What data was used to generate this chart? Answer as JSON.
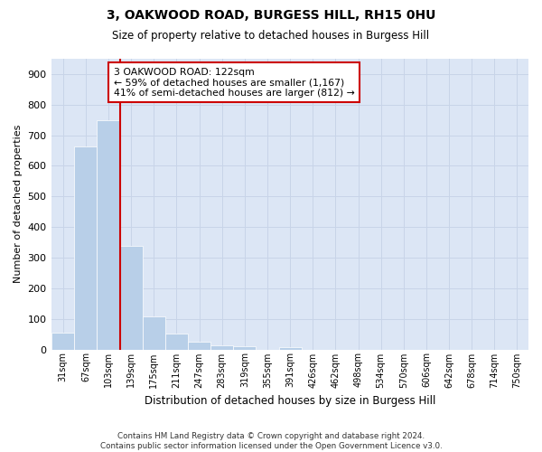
{
  "title_line1": "3, OAKWOOD ROAD, BURGESS HILL, RH15 0HU",
  "title_line2": "Size of property relative to detached houses in Burgess Hill",
  "xlabel": "Distribution of detached houses by size in Burgess Hill",
  "ylabel": "Number of detached properties",
  "footnote": "Contains HM Land Registry data © Crown copyright and database right 2024.\nContains public sector information licensed under the Open Government Licence v3.0.",
  "bin_labels": [
    "31sqm",
    "67sqm",
    "103sqm",
    "139sqm",
    "175sqm",
    "211sqm",
    "247sqm",
    "283sqm",
    "319sqm",
    "355sqm",
    "391sqm",
    "426sqm",
    "462sqm",
    "498sqm",
    "534sqm",
    "570sqm",
    "606sqm",
    "642sqm",
    "678sqm",
    "714sqm",
    "750sqm"
  ],
  "bar_heights": [
    55,
    663,
    748,
    338,
    107,
    52,
    24,
    14,
    11,
    0,
    8,
    0,
    0,
    0,
    0,
    0,
    0,
    0,
    0,
    0,
    0
  ],
  "bar_color": "#b8cfe8",
  "grid_color": "#c8d4e8",
  "background_color": "#dce6f5",
  "vline_x": 3.0,
  "vline_color": "#cc0000",
  "annotation_line1": "3 OAKWOOD ROAD: 122sqm",
  "annotation_line2": "← 59% of detached houses are smaller (1,167)",
  "annotation_line3": "41% of semi-detached houses are larger (812) →",
  "annotation_box_color": "#cc0000",
  "ylim": [
    0,
    950
  ],
  "yticks": [
    0,
    100,
    200,
    300,
    400,
    500,
    600,
    700,
    800,
    900
  ]
}
